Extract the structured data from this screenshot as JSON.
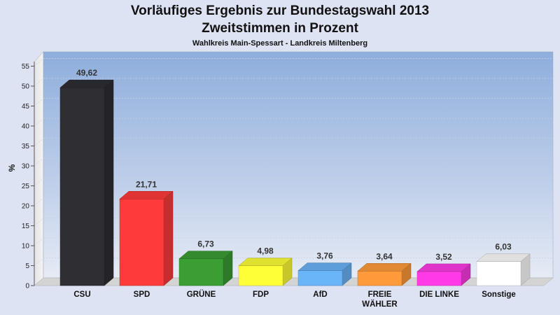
{
  "chart_data": {
    "type": "bar",
    "title": "Vorläufiges Ergebnis zur Bundestagswahl 2013",
    "subtitle": "Zweitstimmen in Prozent",
    "subtitle2": "Wahlkreis Main-Spessart - Landkreis Miltenberg",
    "ylabel": "%",
    "ylim": [
      0,
      57
    ],
    "yticks": [
      0,
      5,
      10,
      15,
      20,
      25,
      30,
      35,
      40,
      45,
      50,
      55
    ],
    "grid": true,
    "categories": [
      {
        "label": [
          "CSU"
        ],
        "value": 49.62,
        "value_label": "49,62",
        "color": "#2e2e33"
      },
      {
        "label": [
          "SPD"
        ],
        "value": 21.71,
        "value_label": "21,71",
        "color": "#ff3a3a"
      },
      {
        "label": [
          "GRÜNE"
        ],
        "value": 6.73,
        "value_label": "6,73",
        "color": "#3a9e34"
      },
      {
        "label": [
          "FDP"
        ],
        "value": 4.98,
        "value_label": "4,98",
        "color": "#ffff38"
      },
      {
        "label": [
          "AfD"
        ],
        "value": 3.76,
        "value_label": "3,76",
        "color": "#6ab4f8"
      },
      {
        "label": [
          "FREIE",
          "WÄHLER"
        ],
        "value": 3.64,
        "value_label": "3,64",
        "color": "#ff9a3a"
      },
      {
        "label": [
          "DIE LINKE"
        ],
        "value": 3.52,
        "value_label": "3,52",
        "color": "#ff3ae6"
      },
      {
        "label": [
          "Sonstige"
        ],
        "value": 6.03,
        "value_label": "6,03",
        "color": "#ffffff"
      }
    ]
  }
}
